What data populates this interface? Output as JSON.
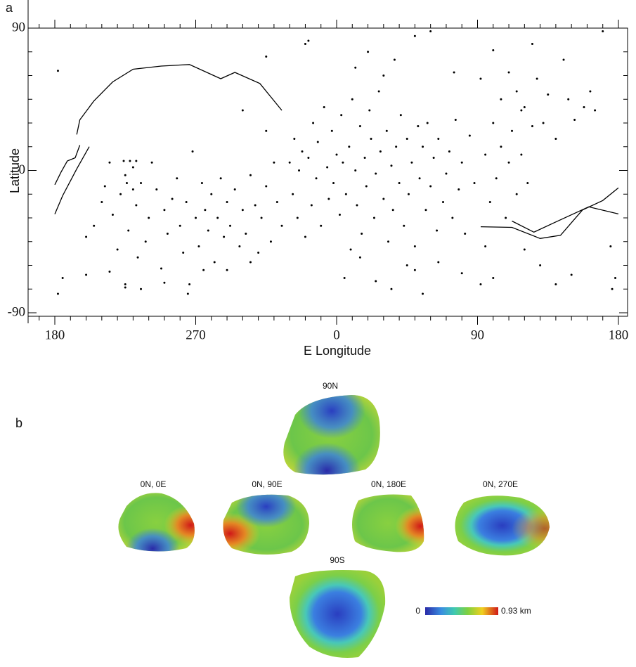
{
  "panel_a_label": "a",
  "chart_data": {
    "type": "scatter",
    "xlabel": "E Longitude",
    "ylabel": "Latitude",
    "xlim": [
      -180,
      180
    ],
    "ylim": [
      -90,
      90
    ],
    "xticks": [
      {
        "value": -180,
        "label": "180"
      },
      {
        "value": -90,
        "label": "270"
      },
      0,
      90,
      180
    ],
    "yticks": [
      -90,
      0,
      90
    ],
    "color": "#000000",
    "line_color": "#000000",
    "x": [
      -160,
      -155,
      -150,
      -148,
      -145,
      -143,
      -140,
      -138,
      -135,
      -133,
      -130,
      -128,
      -127,
      -125,
      -122,
      -120,
      -118,
      -115,
      -112,
      -110,
      -108,
      -105,
      -102,
      -100,
      -98,
      -96,
      -94,
      -92,
      -90,
      -88,
      -86,
      -84,
      -82,
      -80,
      -78,
      -76,
      -74,
      -72,
      -70,
      -68,
      -65,
      -62,
      -60,
      -58,
      -55,
      -52,
      -50,
      -48,
      -45,
      -42,
      -40,
      -38,
      -35,
      -136,
      -134,
      -132,
      -130,
      -128,
      -175,
      -160,
      -145,
      -135,
      -135,
      -125,
      -110,
      -95,
      -85,
      -70,
      -55,
      -178,
      -178,
      -45,
      -20,
      -60,
      -45,
      -30,
      -28,
      -27,
      -25,
      -24,
      -22,
      -20,
      -18,
      -16,
      -15,
      -13,
      -12,
      -10,
      -8,
      -6,
      -5,
      -3,
      -2,
      0,
      2,
      3,
      4,
      6,
      8,
      9,
      10,
      12,
      13,
      15,
      16,
      18,
      19,
      21,
      22,
      24,
      25,
      27,
      28,
      30,
      32,
      33,
      35,
      36,
      38,
      40,
      41,
      43,
      45,
      46,
      48,
      50,
      52,
      53,
      55,
      57,
      58,
      60,
      62,
      64,
      65,
      68,
      70,
      72,
      74,
      76,
      78,
      80,
      82,
      85,
      88,
      -18,
      12,
      20,
      30,
      37,
      50,
      60,
      75,
      92,
      100,
      105,
      110,
      115,
      118,
      125,
      128,
      132,
      135,
      140,
      145,
      148,
      152,
      158,
      162,
      165,
      170,
      95,
      98,
      100,
      102,
      105,
      108,
      110,
      112,
      115,
      118,
      120,
      122,
      125,
      95,
      92,
      100,
      120,
      130,
      140,
      150,
      175,
      178,
      176,
      5,
      15,
      25,
      35,
      45,
      50,
      55,
      65,
      80
    ],
    "y": [
      -42,
      -35,
      -20,
      -10,
      5,
      -28,
      -50,
      -15,
      -3,
      -38,
      2,
      -22,
      -55,
      -8,
      -45,
      -30,
      5,
      -12,
      -62,
      -25,
      -40,
      -18,
      -5,
      -35,
      -52,
      -20,
      -72,
      12,
      -30,
      -48,
      -8,
      -25,
      -38,
      -15,
      -58,
      -30,
      -5,
      -42,
      -20,
      -35,
      -12,
      -48,
      -25,
      -40,
      -3,
      -22,
      -52,
      -30,
      -10,
      -45,
      5,
      -20,
      -35,
      6,
      -8,
      6,
      -12,
      6,
      -68,
      -66,
      -64,
      -72,
      -74,
      -75,
      -71,
      -78,
      -63,
      -63,
      -58,
      63,
      -78,
      72,
      80,
      38,
      25,
      5,
      -15,
      20,
      -30,
      0,
      12,
      -42,
      8,
      -22,
      30,
      -5,
      18,
      -35,
      40,
      2,
      -18,
      25,
      -8,
      10,
      -28,
      35,
      5,
      -15,
      15,
      -50,
      45,
      0,
      -22,
      28,
      -40,
      8,
      -10,
      38,
      20,
      -30,
      -2,
      50,
      12,
      -18,
      25,
      -45,
      3,
      -25,
      15,
      -8,
      35,
      -35,
      20,
      -15,
      5,
      -48,
      28,
      -5,
      15,
      -25,
      30,
      -10,
      8,
      -38,
      20,
      -20,
      -2,
      12,
      -30,
      32,
      -12,
      5,
      -40,
      22,
      -8,
      82,
      65,
      75,
      60,
      70,
      85,
      88,
      62,
      58,
      76,
      45,
      62,
      50,
      38,
      80,
      58,
      30,
      48,
      20,
      70,
      45,
      32,
      40,
      50,
      38,
      88,
      10,
      -20,
      30,
      -5,
      15,
      -30,
      5,
      25,
      -15,
      10,
      40,
      -8,
      28,
      -48,
      -72,
      -68,
      -50,
      -60,
      -72,
      -66,
      -48,
      -68,
      -75,
      -68,
      -55,
      -70,
      -75,
      -60,
      -63,
      -78,
      -58,
      -65
    ],
    "lines": [
      {
        "x": [
          -166,
          -164,
          -155,
          -143,
          -130,
          -112,
          -94,
          -74,
          -65,
          -49,
          -35
        ],
        "y": [
          22.7,
          32,
          44,
          56,
          64,
          66,
          67,
          58,
          62,
          55,
          38
        ]
      },
      {
        "x": [
          -180,
          -176,
          -172,
          -167,
          -164
        ],
        "y": [
          -9,
          -1,
          6,
          8,
          16
        ]
      },
      {
        "x": [
          -180,
          -175,
          -166,
          -158
        ],
        "y": [
          -27.6,
          -16,
          1,
          15
        ]
      },
      {
        "x": [
          92,
          112,
          130,
          143,
          157,
          170,
          180
        ],
        "y": [
          -35.6,
          -36,
          -43,
          -41,
          -25,
          -19,
          -11
        ]
      },
      {
        "x": [
          112,
          126,
          139,
          161,
          180
        ],
        "y": [
          -32,
          -39,
          -33,
          -23,
          -27.5
        ]
      }
    ]
  },
  "panel_b": {
    "label": "b",
    "views": [
      {
        "label": "90N"
      },
      {
        "label": "0N, 0E"
      },
      {
        "label": "0N, 90E"
      },
      {
        "label": "0N, 180E"
      },
      {
        "label": "0N, 270E"
      },
      {
        "label": "90S"
      }
    ],
    "colorbar": {
      "min_label": "0",
      "max_label": "0.93 km"
    }
  }
}
